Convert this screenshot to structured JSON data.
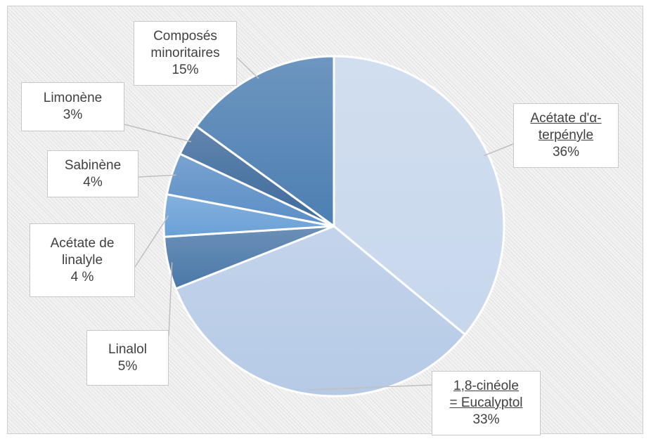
{
  "chart_data": {
    "type": "pie",
    "slices": [
      {
        "label": "Acétate d'α-\nterpényle",
        "value_label": "36%",
        "value": 36,
        "color": "#c7d7ec",
        "underlined": true
      },
      {
        "label": "1,8-cinéole\n= Eucalyptol",
        "value_label": "33%",
        "value": 33,
        "color": "#b6cae6",
        "underlined": true
      },
      {
        "label": "Linalol",
        "value_label": "5%",
        "value": 5,
        "color": "#4a78a8",
        "underlined": false
      },
      {
        "label": "Acétate de\nlinalyle",
        "value_label": "4 %",
        "value": 4,
        "color": "#6aa0d6",
        "underlined": false
      },
      {
        "label": "Sabinène",
        "value_label": "4%",
        "value": 4,
        "color": "#5b8ec6",
        "underlined": false
      },
      {
        "label": "Limonène",
        "value_label": "3%",
        "value": 3,
        "color": "#3e6a9c",
        "underlined": false
      },
      {
        "label": "Composés\nminoritaires",
        "value_label": "15%",
        "value": 15,
        "color": "#4d7fb2",
        "underlined": false
      }
    ]
  }
}
